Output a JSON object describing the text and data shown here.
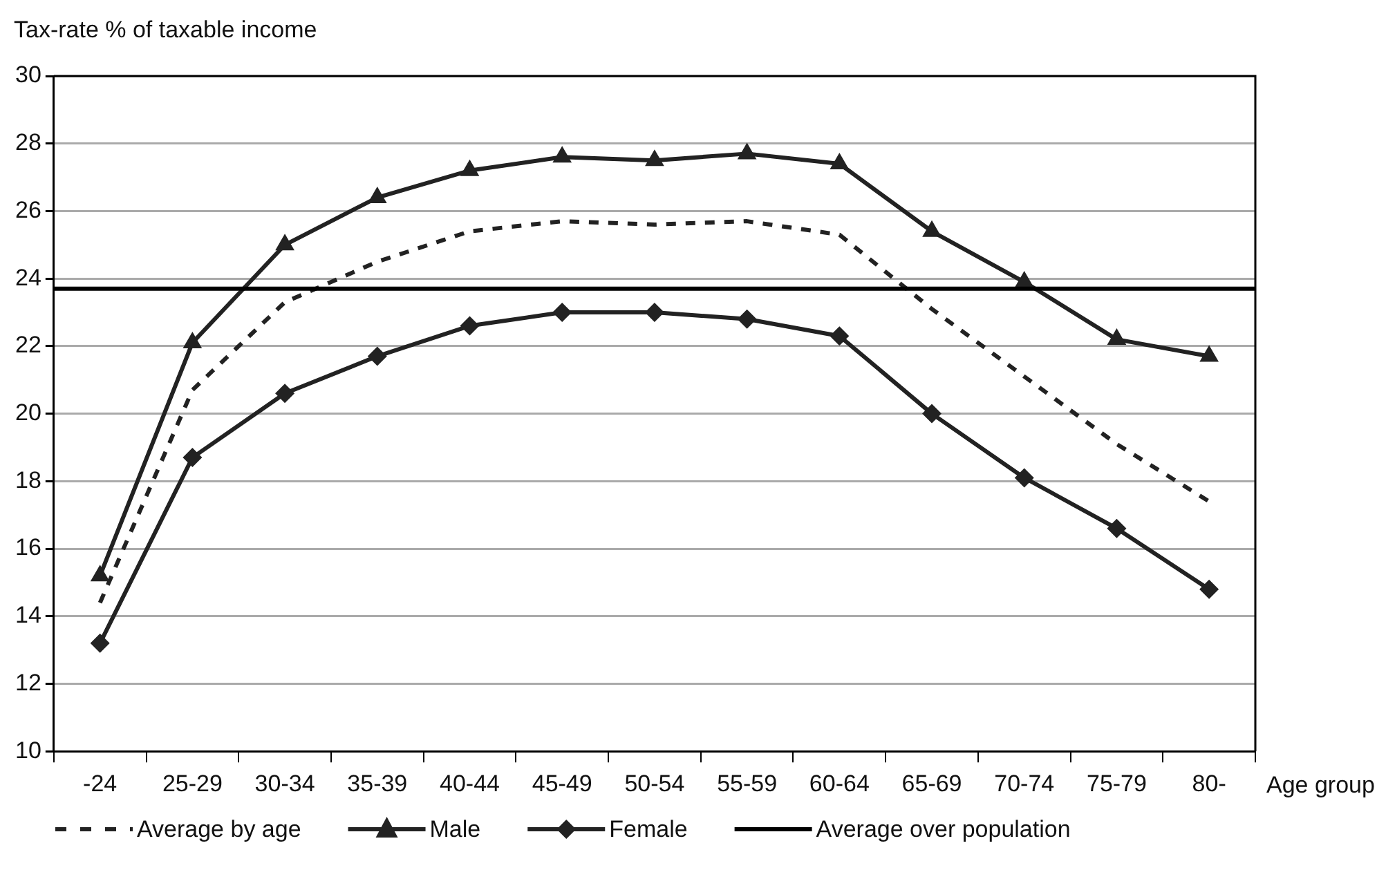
{
  "chart_data": {
    "type": "line",
    "ylabel": "Tax-rate % of taxable income",
    "xlabel": "Age group",
    "categories": [
      "-24",
      "25-29",
      "30-34",
      "35-39",
      "40-44",
      "45-49",
      "50-54",
      "55-59",
      "60-64",
      "65-69",
      "70-74",
      "75-79",
      "80-"
    ],
    "series": [
      {
        "name": "Average by age",
        "color": "#222222",
        "line_style": "dashed",
        "marker": "none",
        "values": [
          14.4,
          20.7,
          23.3,
          24.5,
          25.4,
          25.7,
          25.6,
          25.7,
          25.3,
          23.1,
          21.1,
          19.1,
          17.4
        ]
      },
      {
        "name": "Male",
        "color": "#222222",
        "line_style": "solid",
        "marker": "triangle",
        "values": [
          15.2,
          22.1,
          25.0,
          26.4,
          27.2,
          27.6,
          27.5,
          27.7,
          27.4,
          25.4,
          23.9,
          22.2,
          21.7
        ]
      },
      {
        "name": "Female",
        "color": "#222222",
        "line_style": "solid",
        "marker": "diamond",
        "values": [
          13.2,
          18.7,
          20.6,
          21.7,
          22.6,
          23.0,
          23.0,
          22.8,
          22.3,
          20.0,
          18.1,
          16.6,
          14.8
        ]
      }
    ],
    "ref_lines": [
      {
        "axis": "y",
        "value": 23.7,
        "label": "Average over population",
        "color": "#000000",
        "line_style": "solid"
      }
    ],
    "ylim": [
      10,
      30
    ],
    "yticks": [
      10,
      12,
      14,
      16,
      18,
      20,
      22,
      24,
      26,
      28,
      30
    ],
    "grid": "y",
    "legend": "bottom"
  }
}
